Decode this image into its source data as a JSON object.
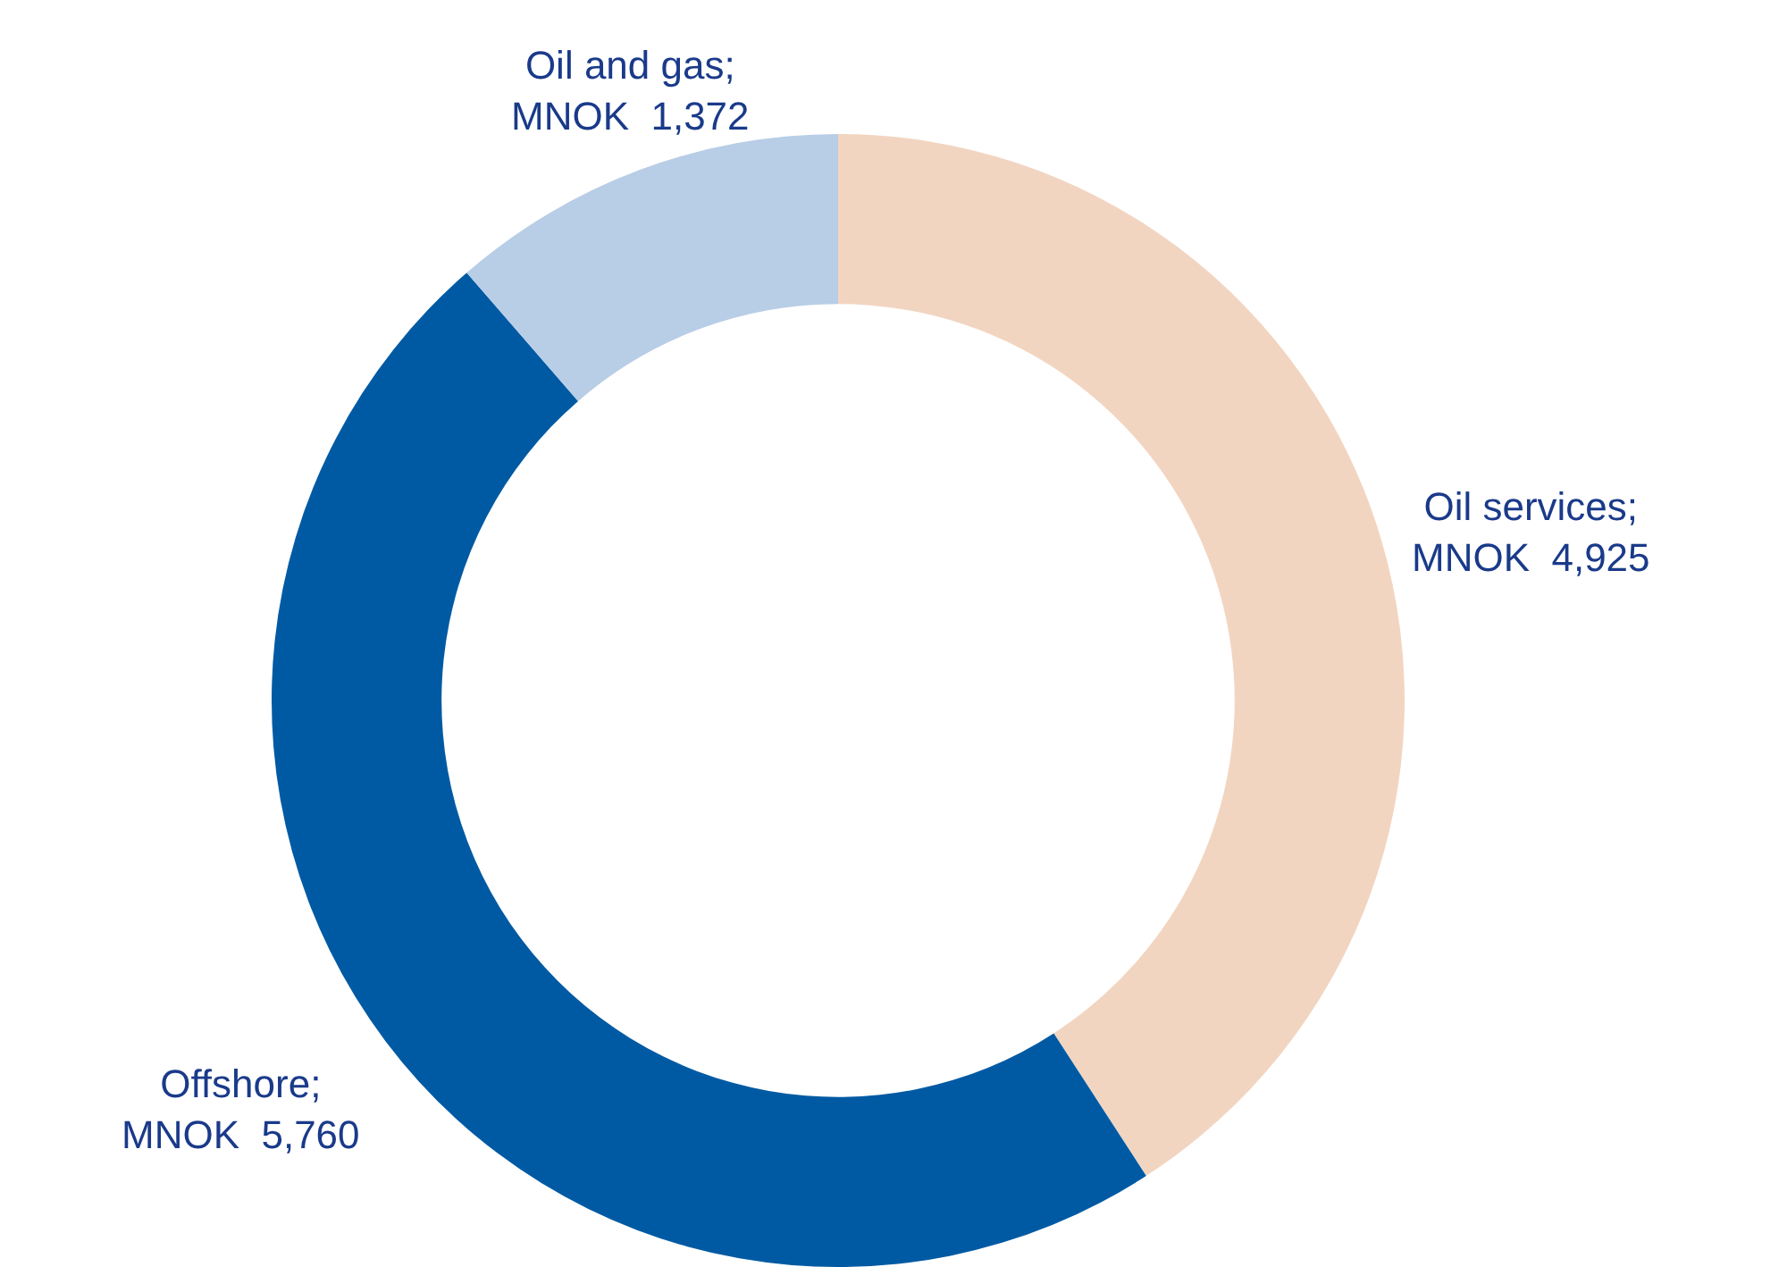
{
  "chart_data": {
    "type": "donut",
    "categories": [
      "Oil services",
      "Offshore",
      "Oil and gas"
    ],
    "values": [
      4925,
      5760,
      1372
    ],
    "value_labels": [
      ";\nMNOK  4,925",
      ";\nMNOK  5,760",
      ";\nMNOK  1,372"
    ],
    "colors": [
      "#f2d5c1",
      "#005aa3",
      "#b8cde6"
    ],
    "legend": false
  }
}
